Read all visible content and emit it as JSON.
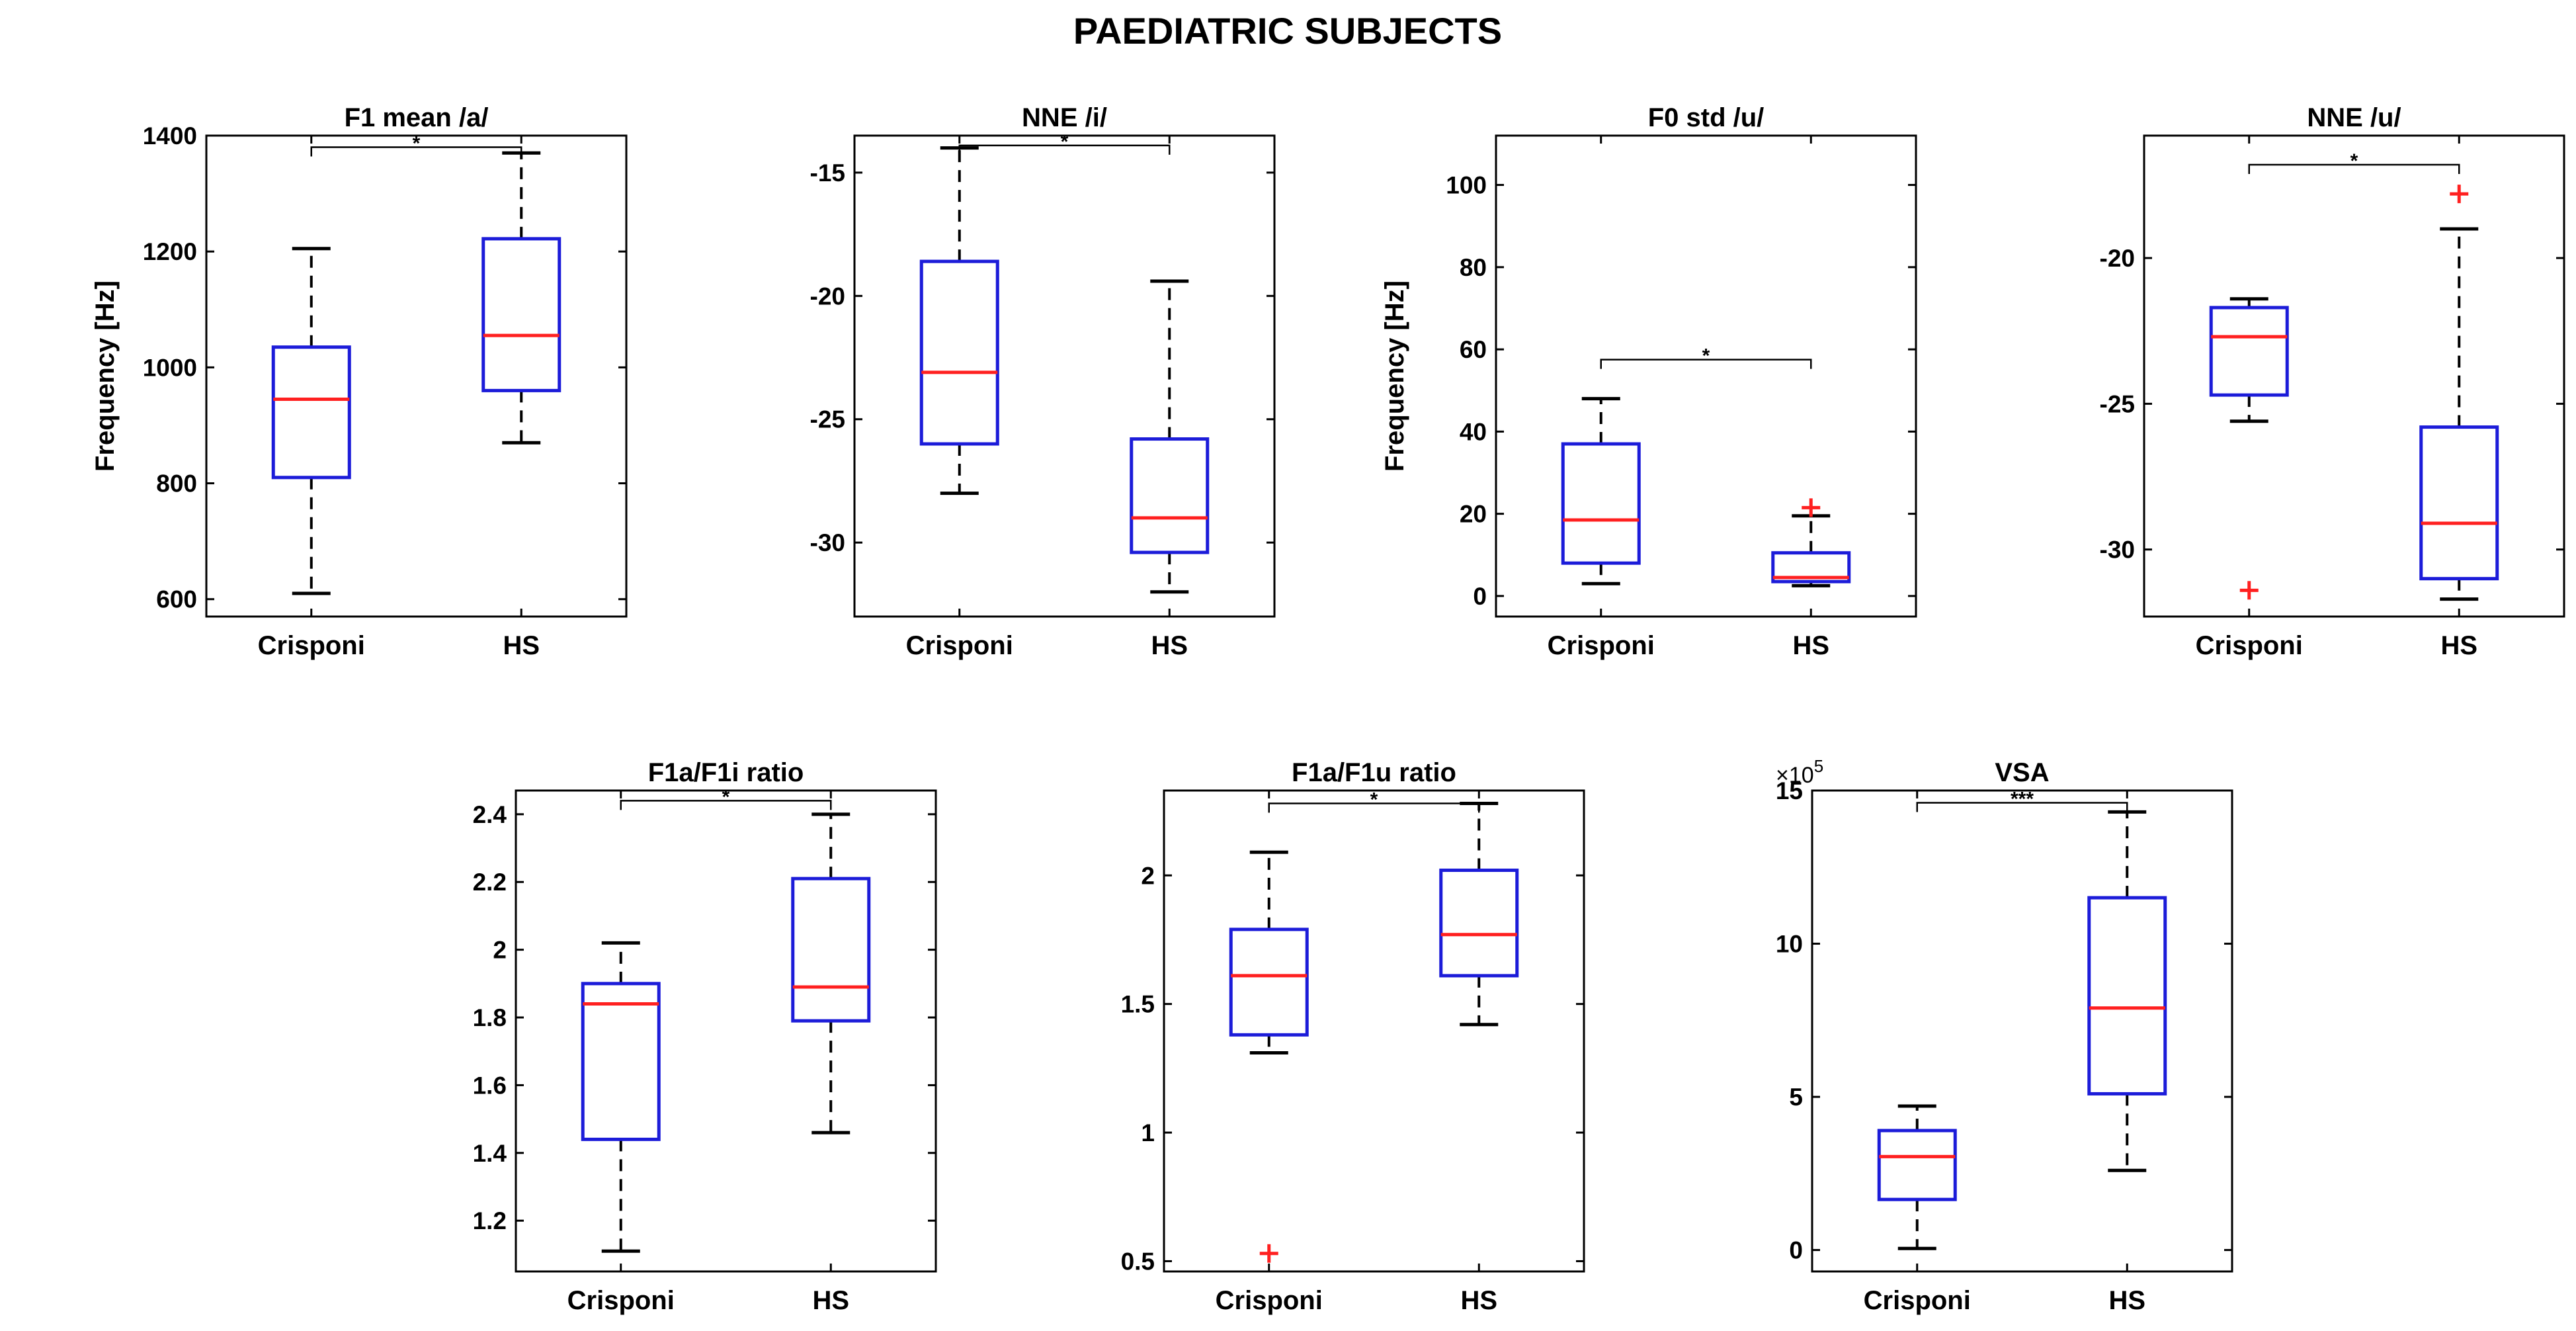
{
  "main_title": "PAEDIATRIC SUBJECTS",
  "colors": {
    "box": "#1c1cd9",
    "median": "#ff2020",
    "outlier": "#ff2020",
    "whisker": "#000000",
    "axis": "#000000"
  },
  "chart_data": [
    {
      "type": "boxplot",
      "title": "F1 mean /a/",
      "ylabel": "Frequency [Hz]",
      "categories": [
        "Crisponi",
        "HS"
      ],
      "ylim": [
        570,
        1400
      ],
      "yticks": [
        600,
        800,
        1000,
        1200,
        1400
      ],
      "ytick_labels": [
        "600",
        "800",
        "1000",
        "1200",
        "1400"
      ],
      "boxes": [
        {
          "category": "Crisponi",
          "whisker_low": 610,
          "q1": 810,
          "median": 945,
          "q3": 1035,
          "whisker_high": 1205,
          "outliers": []
        },
        {
          "category": "HS",
          "whisker_low": 870,
          "q1": 960,
          "median": 1055,
          "q3": 1222,
          "whisker_high": 1370,
          "outliers": []
        }
      ],
      "significance": {
        "label": "*",
        "y": 1380
      }
    },
    {
      "type": "boxplot",
      "title": "NNE /i/",
      "ylabel": "",
      "categories": [
        "Crisponi",
        "HS"
      ],
      "ylim": [
        -33,
        -13.5
      ],
      "yticks": [
        -30,
        -25,
        -20,
        -15
      ],
      "ytick_labels": [
        "-30",
        "-25",
        "-20",
        "-15"
      ],
      "boxes": [
        {
          "category": "Crisponi",
          "whisker_low": -28,
          "q1": -26,
          "median": -23.1,
          "q3": -18.6,
          "whisker_high": -14,
          "outliers": []
        },
        {
          "category": "HS",
          "whisker_low": -32,
          "q1": -30.4,
          "median": -29,
          "q3": -25.8,
          "whisker_high": -19.4,
          "outliers": []
        }
      ],
      "significance": {
        "label": "*",
        "y": -13.9
      }
    },
    {
      "type": "boxplot",
      "title": "F0 std /u/",
      "ylabel": "Frequency [Hz]",
      "categories": [
        "Crisponi",
        "HS"
      ],
      "ylim": [
        -5,
        112
      ],
      "yticks": [
        0,
        20,
        40,
        60,
        80,
        100
      ],
      "ytick_labels": [
        "0",
        "20",
        "40",
        "60",
        "80",
        "100"
      ],
      "boxes": [
        {
          "category": "Crisponi",
          "whisker_low": 3,
          "q1": 8,
          "median": 18.5,
          "q3": 37,
          "whisker_high": 48,
          "outliers": []
        },
        {
          "category": "HS",
          "whisker_low": 2.5,
          "q1": 3.5,
          "median": 4.5,
          "q3": 10.5,
          "whisker_high": 19.5,
          "outliers": [
            21.5
          ]
        }
      ],
      "significance": {
        "label": "*",
        "y": 57.5
      }
    },
    {
      "type": "boxplot",
      "title": "NNE /u/",
      "ylabel": "",
      "categories": [
        "Crisponi",
        "HS"
      ],
      "ylim": [
        -32.3,
        -15.8
      ],
      "yticks": [
        -30,
        -25,
        -20
      ],
      "ytick_labels": [
        "-30",
        "-25",
        "-20"
      ],
      "boxes": [
        {
          "category": "Crisponi",
          "whisker_low": -25.6,
          "q1": -24.7,
          "median": -22.7,
          "q3": -21.7,
          "whisker_high": -21.4,
          "outliers": [
            -31.4
          ]
        },
        {
          "category": "HS",
          "whisker_low": -31.7,
          "q1": -31,
          "median": -29.1,
          "q3": -25.8,
          "whisker_high": -19,
          "outliers": [
            -17.8
          ]
        }
      ],
      "significance": {
        "label": "*",
        "y": -16.8
      }
    },
    {
      "type": "boxplot",
      "title": "F1a/F1i ratio",
      "ylabel": "",
      "categories": [
        "Crisponi",
        "HS"
      ],
      "ylim": [
        1.05,
        2.47
      ],
      "yticks": [
        1.2,
        1.4,
        1.6,
        1.8,
        2,
        2.2,
        2.4
      ],
      "ytick_labels": [
        "1.2",
        "1.4",
        "1.6",
        "1.8",
        "2",
        "2.2",
        "2.4"
      ],
      "boxes": [
        {
          "category": "Crisponi",
          "whisker_low": 1.11,
          "q1": 1.44,
          "median": 1.84,
          "q3": 1.9,
          "whisker_high": 2.02,
          "outliers": []
        },
        {
          "category": "HS",
          "whisker_low": 1.46,
          "q1": 1.79,
          "median": 1.89,
          "q3": 2.21,
          "whisker_high": 2.4,
          "outliers": []
        }
      ],
      "significance": {
        "label": "*",
        "y": 2.44
      }
    },
    {
      "type": "boxplot",
      "title": "F1a/F1u ratio",
      "ylabel": "",
      "categories": [
        "Crisponi",
        "HS"
      ],
      "ylim": [
        0.46,
        2.33
      ],
      "yticks": [
        0.5,
        1,
        1.5,
        2
      ],
      "ytick_labels": [
        "0.5",
        "1",
        "1.5",
        "2"
      ],
      "boxes": [
        {
          "category": "Crisponi",
          "whisker_low": 1.31,
          "q1": 1.38,
          "median": 1.61,
          "q3": 1.79,
          "whisker_high": 2.09,
          "outliers": [
            0.53
          ]
        },
        {
          "category": "HS",
          "whisker_low": 1.42,
          "q1": 1.61,
          "median": 1.77,
          "q3": 2.02,
          "whisker_high": 2.28,
          "outliers": []
        }
      ],
      "significance": {
        "label": "*",
        "y": 2.28
      }
    },
    {
      "type": "boxplot",
      "title": "VSA",
      "ylabel": "",
      "exponent_label": "×10",
      "exponent_power": "5",
      "categories": [
        "Crisponi",
        "HS"
      ],
      "ylim": [
        -0.7,
        15
      ],
      "yticks": [
        0,
        5,
        10,
        15
      ],
      "ytick_labels": [
        "0",
        "5",
        "10",
        "15"
      ],
      "boxes": [
        {
          "category": "Crisponi",
          "whisker_low": 0.05,
          "q1": 1.65,
          "median": 3.05,
          "q3": 3.9,
          "whisker_high": 4.7,
          "outliers": []
        },
        {
          "category": "HS",
          "whisker_low": 2.6,
          "q1": 5.1,
          "median": 7.9,
          "q3": 11.5,
          "whisker_high": 14.3,
          "outliers": []
        }
      ],
      "significance": {
        "label": "***",
        "y": 14.6
      }
    }
  ]
}
